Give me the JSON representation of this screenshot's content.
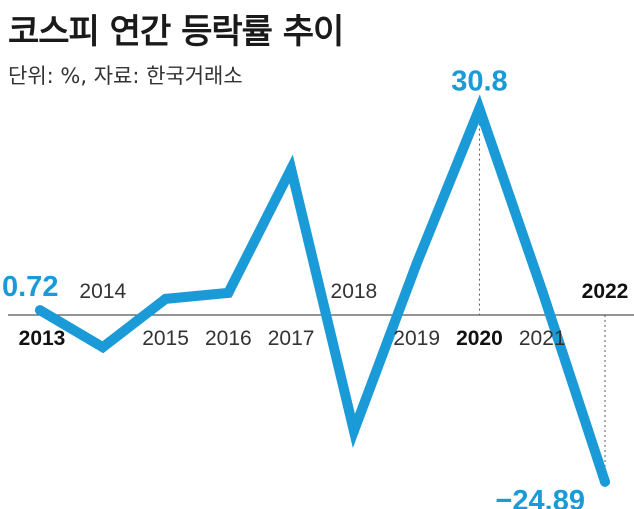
{
  "title": "코스피 연간 등락률 추이",
  "subtitle": "단위: %, 자료: 한국거래소",
  "colors": {
    "line": "#1a9ad6",
    "label": "#1a9ad6",
    "axis": "#555555",
    "text": "#333333"
  },
  "chart_data": {
    "type": "line",
    "x": [
      "2013",
      "2014",
      "2015",
      "2016",
      "2017",
      "2018",
      "2019",
      "2020",
      "2021",
      "2022"
    ],
    "values": [
      0.72,
      -4.8,
      2.4,
      3.3,
      21.8,
      -17.3,
      7.7,
      30.8,
      3.6,
      -24.89
    ],
    "highlight_labels": [
      {
        "x": "2013",
        "text": "0.72"
      },
      {
        "x": "2020",
        "text": "30.8"
      },
      {
        "x": "2022",
        "text": "−24.89"
      }
    ],
    "bold_ticks": [
      "2013",
      "2020",
      "2022"
    ],
    "tick_above": [
      "2014",
      "2018",
      "2022"
    ],
    "ylim": [
      -27,
      33
    ],
    "grid": false
  }
}
